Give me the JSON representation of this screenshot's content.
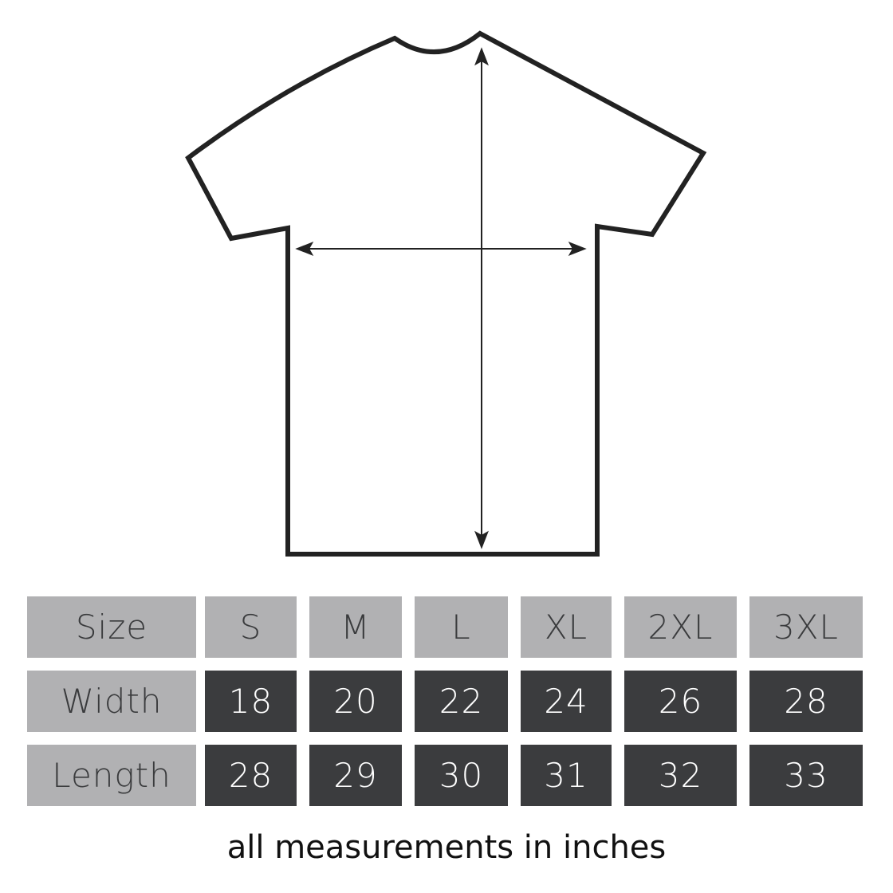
{
  "diagram": {
    "subject": "t-shirt",
    "measurements_shown": [
      "width",
      "length"
    ]
  },
  "table": {
    "header": [
      "Size",
      "S",
      "M",
      "L",
      "XL",
      "2XL",
      "3XL"
    ],
    "rows": [
      {
        "label": "Width",
        "values": [
          "18",
          "20",
          "22",
          "24",
          "26",
          "28"
        ]
      },
      {
        "label": "Length",
        "values": [
          "28",
          "29",
          "30",
          "31",
          "32",
          "33"
        ]
      }
    ]
  },
  "caption": "all measurements in inches",
  "colors": {
    "header_bg": "#b1b1b3",
    "value_bg": "#3b3c3e",
    "outline": "#222222"
  }
}
